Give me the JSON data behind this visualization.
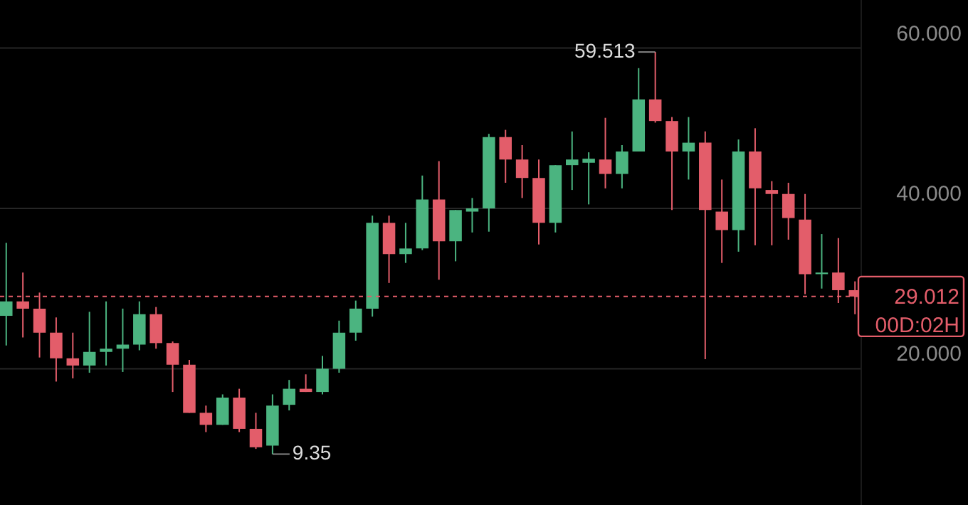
{
  "chart_data": {
    "type": "candlestick",
    "categories": [
      null,
      null,
      null,
      null,
      null,
      null,
      null,
      null,
      null,
      null,
      null,
      null,
      null,
      null,
      null,
      null,
      null,
      null,
      null,
      null,
      null,
      null,
      null,
      null,
      null,
      null,
      null,
      null,
      null,
      null,
      null,
      null,
      null,
      null,
      null,
      null,
      null,
      null,
      null,
      null,
      null,
      null,
      null,
      null,
      null,
      null,
      null,
      null,
      null,
      null,
      null,
      null
    ],
    "ohlc": [
      [
        26.6,
        35.7,
        22.9,
        28.4
      ],
      [
        28.4,
        32.0,
        23.9,
        27.5
      ],
      [
        27.5,
        29.5,
        21.4,
        24.5
      ],
      [
        24.5,
        26.4,
        18.4,
        21.3
      ],
      [
        21.3,
        24.5,
        18.8,
        20.4
      ],
      [
        20.4,
        27.1,
        19.5,
        22.1
      ],
      [
        22.1,
        28.4,
        20.4,
        22.5
      ],
      [
        22.5,
        27.5,
        19.6,
        23.0
      ],
      [
        23.0,
        28.4,
        22.3,
        26.8
      ],
      [
        26.8,
        27.7,
        22.5,
        23.2
      ],
      [
        23.2,
        23.4,
        17.1,
        20.5
      ],
      [
        20.5,
        21.1,
        14.5,
        14.5
      ],
      [
        14.5,
        15.4,
        12.1,
        13.0
      ],
      [
        13.0,
        16.8,
        13.0,
        16.4
      ],
      [
        16.4,
        17.5,
        12.1,
        12.5
      ],
      [
        12.5,
        14.5,
        10.0,
        10.2
      ],
      [
        10.4,
        16.8,
        9.35,
        15.4
      ],
      [
        15.5,
        18.6,
        14.8,
        17.5
      ],
      [
        17.5,
        19.3,
        17.1,
        17.1
      ],
      [
        17.1,
        21.6,
        16.8,
        20.0
      ],
      [
        20.0,
        26.0,
        19.5,
        24.5
      ],
      [
        24.5,
        28.5,
        23.5,
        27.5
      ],
      [
        27.5,
        39.1,
        26.5,
        38.2
      ],
      [
        38.2,
        39.1,
        30.7,
        34.3
      ],
      [
        34.3,
        38.2,
        33.2,
        35.0
      ],
      [
        35.0,
        44.1,
        34.8,
        41.1
      ],
      [
        41.1,
        45.9,
        31.1,
        35.9
      ],
      [
        35.9,
        39.8,
        33.4,
        39.8
      ],
      [
        39.6,
        41.3,
        37.0,
        40.0
      ],
      [
        40.0,
        49.3,
        37.1,
        48.9
      ],
      [
        48.9,
        49.8,
        43.2,
        46.1
      ],
      [
        46.1,
        47.9,
        41.3,
        43.8
      ],
      [
        43.8,
        46.1,
        35.5,
        38.2
      ],
      [
        38.2,
        45.4,
        37.0,
        45.4
      ],
      [
        45.4,
        49.6,
        42.3,
        46.1
      ],
      [
        45.7,
        47.0,
        40.5,
        46.2
      ],
      [
        46.1,
        51.3,
        42.5,
        44.3
      ],
      [
        44.3,
        47.9,
        42.5,
        47.1
      ],
      [
        47.1,
        57.5,
        47.1,
        53.6
      ],
      [
        53.6,
        59.513,
        50.7,
        50.9
      ],
      [
        50.9,
        51.4,
        39.8,
        47.1
      ],
      [
        47.1,
        51.4,
        43.6,
        48.2
      ],
      [
        48.2,
        49.6,
        21.2,
        39.8
      ],
      [
        39.6,
        43.6,
        33.2,
        37.3
      ],
      [
        37.3,
        48.6,
        34.6,
        47.1
      ],
      [
        47.1,
        50.0,
        35.4,
        42.5
      ],
      [
        42.3,
        43.4,
        35.4,
        41.8
      ],
      [
        41.8,
        43.2,
        36.1,
        38.8
      ],
      [
        38.6,
        41.8,
        29.3,
        31.8
      ],
      [
        31.8,
        36.8,
        30.0,
        32.0
      ],
      [
        32.0,
        36.3,
        28.2,
        29.8
      ],
      [
        29.8,
        30.9,
        26.8,
        29.012
      ]
    ],
    "colors": [
      "#4bb480",
      "#e35d6a",
      "#e35d6a",
      "#e35d6a",
      "#e35d6a",
      "#4bb480",
      "#4bb480",
      "#4bb480",
      "#4bb480",
      "#e35d6a",
      "#e35d6a",
      "#e35d6a",
      "#e35d6a",
      "#4bb480",
      "#e35d6a",
      "#e35d6a",
      "#4bb480",
      "#4bb480",
      "#e35d6a",
      "#4bb480",
      "#4bb480",
      "#4bb480",
      "#4bb480",
      "#e35d6a",
      "#4bb480",
      "#4bb480",
      "#e35d6a",
      "#4bb480",
      "#4bb480",
      "#4bb480",
      "#e35d6a",
      "#e35d6a",
      "#e35d6a",
      "#4bb480",
      "#4bb480",
      "#4bb480",
      "#e35d6a",
      "#4bb480",
      "#4bb480",
      "#e35d6a",
      "#e35d6a",
      "#4bb480",
      "#e35d6a",
      "#e35d6a",
      "#4bb480",
      "#e35d6a",
      "#e35d6a",
      "#e35d6a",
      "#e35d6a",
      "#4bb480",
      "#e35d6a",
      "#e35d6a"
    ],
    "ylim": [
      3,
      66
    ],
    "yticks": [
      {
        "value": 20,
        "label": "20.000"
      },
      {
        "value": 40,
        "label": "40.000"
      },
      {
        "value": 60,
        "label": "60.000"
      }
    ],
    "grid": "y",
    "ref_lines": [
      {
        "axis": "y",
        "value": 29.012,
        "label": "29.012",
        "color": "#e35d6a",
        "line_style": "dashed"
      }
    ],
    "annotations": [
      "59.513",
      "9.35",
      "00D:02H"
    ]
  }
}
